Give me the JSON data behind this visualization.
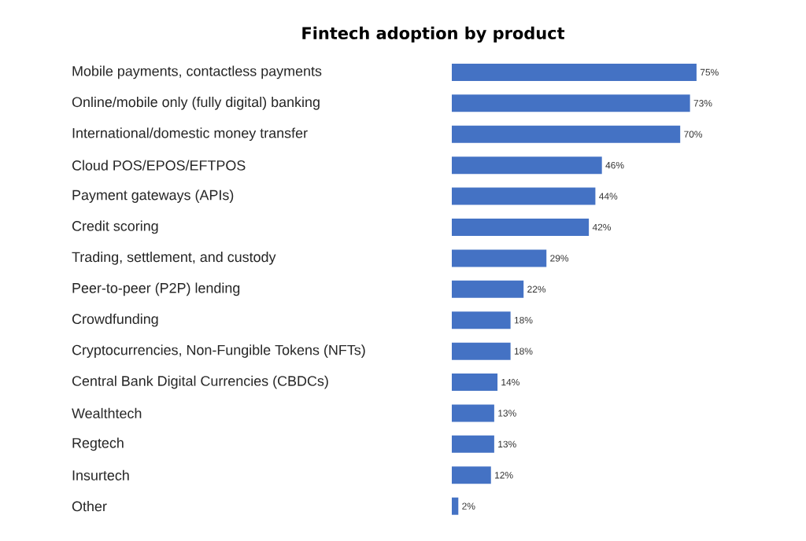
{
  "chart_data": {
    "type": "bar",
    "orientation": "horizontal",
    "title": "Fintech adoption by product",
    "categories": [
      "Mobile payments, contactless payments",
      "Online/mobile only (fully digital) banking",
      "International/domestic money transfer",
      "Cloud POS/EPOS/EFTPOS",
      "Payment gateways (APIs)",
      "Credit scoring",
      "Trading, settlement, and custody",
      "Peer-to-peer (P2P) lending",
      "Crowdfunding",
      "Cryptocurrencies, Non-Fungible Tokens (NFTs)",
      "Central Bank Digital Currencies (CBDCs)",
      "Wealthtech",
      "Regtech",
      "Insurtech",
      "Other"
    ],
    "values": [
      75,
      73,
      70,
      46,
      44,
      42,
      29,
      22,
      18,
      18,
      14,
      13,
      13,
      12,
      2
    ],
    "value_labels": [
      "75%",
      "73%",
      "70%",
      "46%",
      "44%",
      "42%",
      "29%",
      "22%",
      "18%",
      "18%",
      "14%",
      "13%",
      "13%",
      "12%",
      "2%"
    ],
    "color": "#4472c4",
    "tick_labels": "y"
  }
}
